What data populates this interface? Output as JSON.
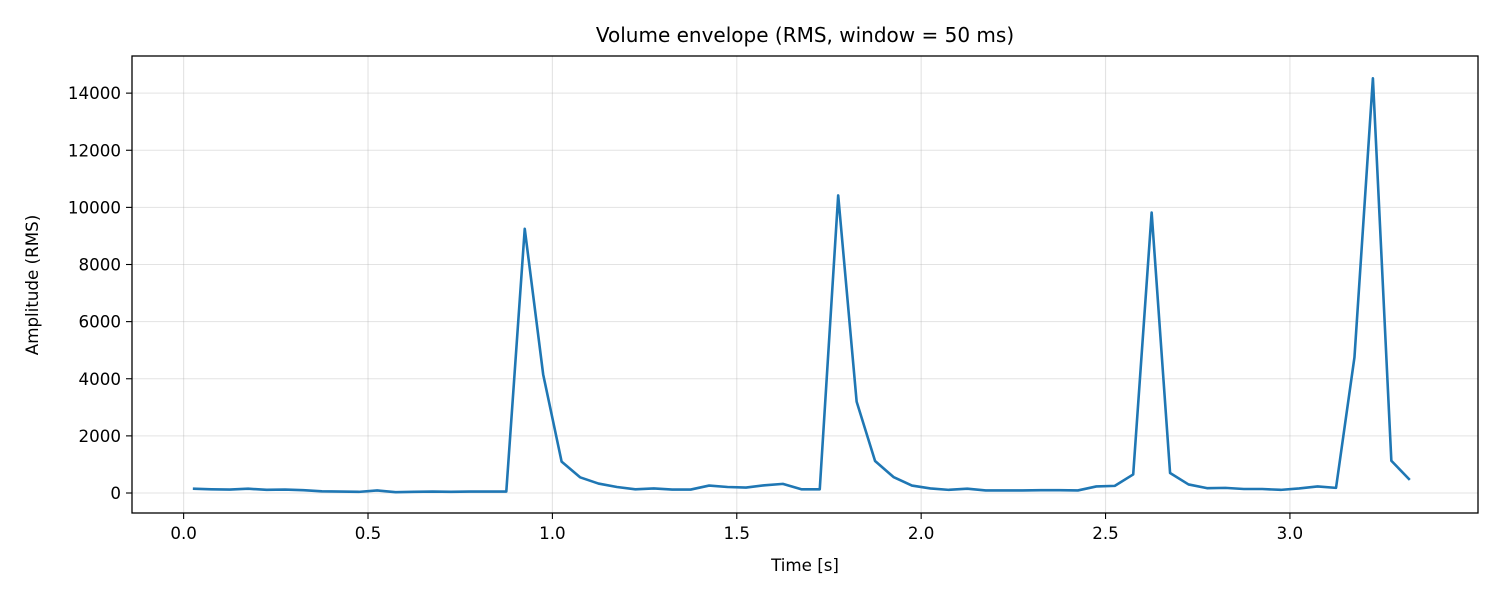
{
  "chart_data": {
    "type": "line",
    "title": "Volume envelope (RMS, window = 50 ms)",
    "xlabel": "Time [s]",
    "ylabel": "Amplitude (RMS)",
    "xlim": [
      -0.14,
      3.51
    ],
    "ylim": [
      -700,
      15300
    ],
    "xticks": [
      0.0,
      0.5,
      1.0,
      1.5,
      2.0,
      2.5,
      3.0
    ],
    "xtick_labels": [
      "0.0",
      "0.5",
      "1.0",
      "1.5",
      "2.0",
      "2.5",
      "3.0"
    ],
    "yticks": [
      0,
      2000,
      4000,
      6000,
      8000,
      10000,
      12000,
      14000
    ],
    "ytick_labels": [
      "0",
      "2000",
      "4000",
      "6000",
      "8000",
      "10000",
      "12000",
      "14000"
    ],
    "grid": true,
    "legend": "none",
    "series": [
      {
        "color": "#1f77b4",
        "x": [
          0.025,
          0.075,
          0.125,
          0.175,
          0.225,
          0.275,
          0.325,
          0.375,
          0.425,
          0.475,
          0.525,
          0.575,
          0.625,
          0.675,
          0.725,
          0.775,
          0.825,
          0.875,
          0.925,
          0.975,
          1.025,
          1.075,
          1.125,
          1.175,
          1.225,
          1.275,
          1.325,
          1.375,
          1.425,
          1.475,
          1.525,
          1.575,
          1.625,
          1.675,
          1.725,
          1.775,
          1.825,
          1.875,
          1.925,
          1.975,
          2.025,
          2.075,
          2.125,
          2.175,
          2.225,
          2.275,
          2.325,
          2.375,
          2.425,
          2.475,
          2.525,
          2.575,
          2.625,
          2.675,
          2.725,
          2.775,
          2.825,
          2.875,
          2.925,
          2.975,
          3.025,
          3.075,
          3.125,
          3.175,
          3.225,
          3.275,
          3.325
        ],
        "y": [
          150,
          130,
          120,
          150,
          110,
          120,
          100,
          60,
          50,
          40,
          90,
          30,
          40,
          50,
          40,
          50,
          50,
          50,
          9250,
          4150,
          1100,
          550,
          330,
          210,
          130,
          160,
          120,
          120,
          260,
          210,
          190,
          270,
          320,
          130,
          130,
          10420,
          3200,
          1120,
          560,
          260,
          160,
          110,
          150,
          90,
          90,
          90,
          100,
          100,
          90,
          230,
          250,
          650,
          9820,
          700,
          300,
          170,
          180,
          140,
          140,
          110,
          160,
          230,
          180,
          4750,
          14520,
          1130,
          460
        ]
      }
    ]
  }
}
